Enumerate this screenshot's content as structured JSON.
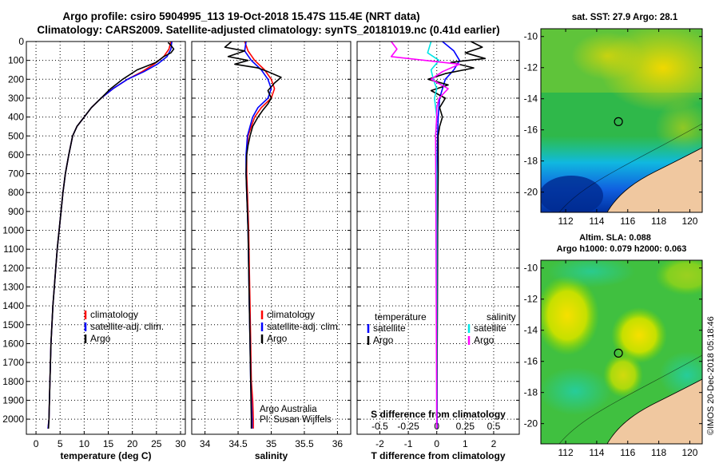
{
  "header": {
    "title_line1": "Argo profile: csiro 5904995_113 19-Oct-2018 15.47S 115.4E (NRT data)",
    "title_line2": "Climatology: CARS2009. Satellite-adjusted climatology: synTS_20181019.nc (0.41d earlier)"
  },
  "colors": {
    "climatology": "#ff0000",
    "satellite": "#0000ff",
    "argo": "#000000",
    "salinity_satellite": "#00e5e5",
    "salinity_argo": "#ff00ff"
  },
  "chart_data": [
    {
      "type": "line",
      "xlabel": "temperature (deg C)",
      "ylabel": "",
      "xlim": [
        -2,
        31
      ],
      "ylim": [
        2080,
        0
      ],
      "xticks": [
        "0",
        "5",
        "10",
        "15",
        "20",
        "25",
        "30"
      ],
      "yticks": [
        "0",
        "100",
        "200",
        "300",
        "400",
        "500",
        "600",
        "700",
        "800",
        "900",
        "1000",
        "1100",
        "1200",
        "1300",
        "1400",
        "1500",
        "1600",
        "1700",
        "1800",
        "1900",
        "2000"
      ],
      "legend": [
        "climatology",
        "satellite-adj. clim.",
        "Argo"
      ],
      "series": [
        {
          "name": "climatology",
          "x": [
            28,
            27.6,
            26.5,
            24.5,
            22,
            19,
            16,
            13.5,
            11.5,
            10,
            8.5,
            7.6,
            6.8,
            6.1,
            5.6,
            5.2,
            4.8,
            4.4,
            4.1,
            3.8,
            3.5,
            3.3,
            3.1,
            2.9,
            2.7,
            2.5
          ],
          "y": [
            0,
            40,
            80,
            120,
            160,
            200,
            250,
            300,
            350,
            400,
            450,
            500,
            600,
            700,
            800,
            900,
            1000,
            1100,
            1200,
            1300,
            1400,
            1500,
            1600,
            1800,
            2000,
            2050
          ]
        },
        {
          "name": "satellite-adj. clim.",
          "x": [
            28.2,
            28,
            27.2,
            25.2,
            22.4,
            19,
            16,
            13.5,
            11.5,
            10,
            8.5,
            7.6,
            6.8,
            6.1,
            5.6,
            5.2,
            4.8,
            4.4,
            4.1,
            3.8,
            3.5,
            3.3,
            3.1,
            2.9,
            2.7,
            2.5
          ],
          "y": [
            0,
            40,
            80,
            120,
            160,
            200,
            250,
            300,
            350,
            400,
            450,
            500,
            600,
            700,
            800,
            900,
            1000,
            1100,
            1200,
            1300,
            1400,
            1500,
            1600,
            1800,
            2000,
            2050
          ]
        },
        {
          "name": "Argo",
          "x": [
            27.4,
            28,
            28.6,
            28,
            26.5,
            25,
            21,
            18,
            15.5,
            13.5,
            11.5,
            10,
            8.5,
            7.6,
            6.8,
            6.1,
            5.6,
            5.2,
            4.8,
            4.4,
            4.1,
            3.8,
            3.5,
            3.3,
            3.1,
            2.9,
            2.7,
            2.6
          ],
          "y": [
            5,
            20,
            40,
            60,
            80,
            110,
            150,
            200,
            250,
            300,
            350,
            400,
            450,
            500,
            600,
            700,
            800,
            900,
            1000,
            1100,
            1200,
            1300,
            1400,
            1500,
            1600,
            1800,
            2000,
            2050
          ]
        }
      ]
    },
    {
      "type": "line",
      "xlabel": "salinity",
      "xlim": [
        33.8,
        36.2
      ],
      "ylim": [
        2080,
        0
      ],
      "xticks": [
        "34",
        "34.5",
        "35",
        "35.5",
        "36"
      ],
      "legend": [
        "climatology",
        "satellite-adj. clim.",
        "Argo"
      ],
      "annotation": [
        "Argo Australia",
        "PI: Susan Wijffels"
      ],
      "series": [
        {
          "name": "climatology",
          "x": [
            34.6,
            34.65,
            34.75,
            34.9,
            35.0,
            35.05,
            35.0,
            34.85,
            34.75,
            34.7,
            34.65,
            34.63,
            34.63,
            34.64,
            34.65,
            34.66,
            34.67,
            34.68,
            34.69,
            34.7,
            34.72,
            34.73,
            34.73
          ],
          "y": [
            0,
            50,
            100,
            150,
            200,
            250,
            300,
            350,
            400,
            450,
            500,
            600,
            700,
            800,
            900,
            1000,
            1200,
            1400,
            1600,
            1800,
            1900,
            2000,
            2050
          ]
        },
        {
          "name": "satellite-adj. clim.",
          "x": [
            34.62,
            34.6,
            34.7,
            34.85,
            34.95,
            35.0,
            34.95,
            34.8,
            34.72,
            34.68,
            34.64,
            34.62,
            34.62,
            34.63,
            34.64,
            34.65,
            34.66,
            34.67,
            34.68,
            34.69,
            34.7,
            34.71,
            34.71
          ],
          "y": [
            0,
            50,
            100,
            150,
            200,
            250,
            300,
            350,
            400,
            450,
            500,
            600,
            700,
            800,
            900,
            1000,
            1200,
            1400,
            1600,
            1800,
            1900,
            2000,
            2050
          ]
        },
        {
          "name": "Argo",
          "x": [
            34.4,
            34.3,
            34.6,
            34.35,
            34.65,
            34.45,
            34.8,
            34.95,
            35.15,
            35.05,
            34.95,
            35.0,
            34.95,
            34.88,
            34.8,
            34.72,
            34.68,
            34.65,
            34.63,
            34.62,
            34.63,
            34.64,
            34.65,
            34.66,
            34.67,
            34.68,
            34.69,
            34.7,
            34.7
          ],
          "y": [
            0,
            30,
            50,
            80,
            100,
            120,
            140,
            160,
            190,
            220,
            260,
            300,
            330,
            360,
            400,
            450,
            500,
            550,
            600,
            700,
            800,
            900,
            1000,
            1200,
            1400,
            1600,
            1800,
            2000,
            2050
          ]
        }
      ]
    },
    {
      "type": "line",
      "xlabel": "T difference from climatology",
      "xlabel2": "S difference from climatology",
      "xlim": [
        -2.8,
        2.9
      ],
      "x2lim": [
        -0.7,
        0.725
      ],
      "ylim": [
        2080,
        0
      ],
      "xticks": [
        "-2",
        "-1",
        "0",
        "1",
        "2"
      ],
      "x2ticks": [
        "-0.5",
        "-0.25",
        "0",
        "0.25",
        "0.5"
      ],
      "legend_left_title": "temperature",
      "legend_right_title": "salinity",
      "legend_left": [
        "satellite",
        "Argo"
      ],
      "legend_right": [
        "satellite",
        "Argo"
      ],
      "series": [
        {
          "name": "satellite",
          "axis": "T",
          "x": [
            0.2,
            0.6,
            0.8,
            0.6,
            0.3,
            0.1,
            0.05,
            0.03,
            0.02,
            0.02,
            0.01,
            0.01,
            0.01
          ],
          "y": [
            0,
            50,
            100,
            150,
            200,
            300,
            400,
            500,
            700,
            900,
            1200,
            1600,
            2050
          ]
        },
        {
          "name": "Argo",
          "axis": "T",
          "x": [
            1.2,
            1.6,
            1.0,
            1.7,
            0.5,
            1.3,
            0.3,
            -0.3,
            0.4,
            -0.2,
            0.3,
            0.1,
            0.2,
            0.1,
            0.05,
            0.05,
            0.03,
            0.02,
            0.0
          ],
          "y": [
            0,
            30,
            60,
            90,
            110,
            140,
            170,
            200,
            230,
            260,
            300,
            350,
            400,
            450,
            500,
            700,
            1000,
            1500,
            2050
          ]
        },
        {
          "name": "satellite",
          "axis": "S",
          "x": [
            -0.05,
            -0.08,
            0.02,
            -0.05,
            -0.03,
            0.0,
            -0.02,
            -0.01,
            0.0,
            -0.01,
            0.0,
            0.0
          ],
          "y": [
            0,
            60,
            100,
            150,
            200,
            250,
            300,
            350,
            400,
            500,
            700,
            2050
          ]
        },
        {
          "name": "Argo",
          "axis": "S",
          "x": [
            -0.4,
            -0.35,
            -0.4,
            -0.1,
            0.2,
            0.05,
            -0.05,
            0.1,
            0.02,
            0.0,
            0.0,
            -0.01,
            0.0
          ],
          "y": [
            0,
            40,
            80,
            100,
            120,
            160,
            200,
            250,
            300,
            350,
            400,
            500,
            2050
          ]
        }
      ]
    }
  ],
  "maps": [
    {
      "title": "sat. SST: 27.9 Argo: 28.1",
      "subtitle": "",
      "xticks": [
        "112",
        "114",
        "116",
        "118",
        "120"
      ],
      "yticks": [
        "-10",
        "-12",
        "-14",
        "-16",
        "-18",
        "-20"
      ],
      "marker": {
        "lon": 115.4,
        "lat": -15.47
      }
    },
    {
      "title": "Altim. SLA: 0.088",
      "subtitle": "Argo h1000: 0.079 h2000: 0.063",
      "xticks": [
        "112",
        "114",
        "116",
        "118",
        "120"
      ],
      "yticks": [
        "-10",
        "-12",
        "-14",
        "-16",
        "-18",
        "-20"
      ],
      "marker": {
        "lon": 115.4,
        "lat": -15.47
      }
    }
  ],
  "footer": {
    "credit": "©IMOS 20-Dec-2018 05:18:46"
  }
}
